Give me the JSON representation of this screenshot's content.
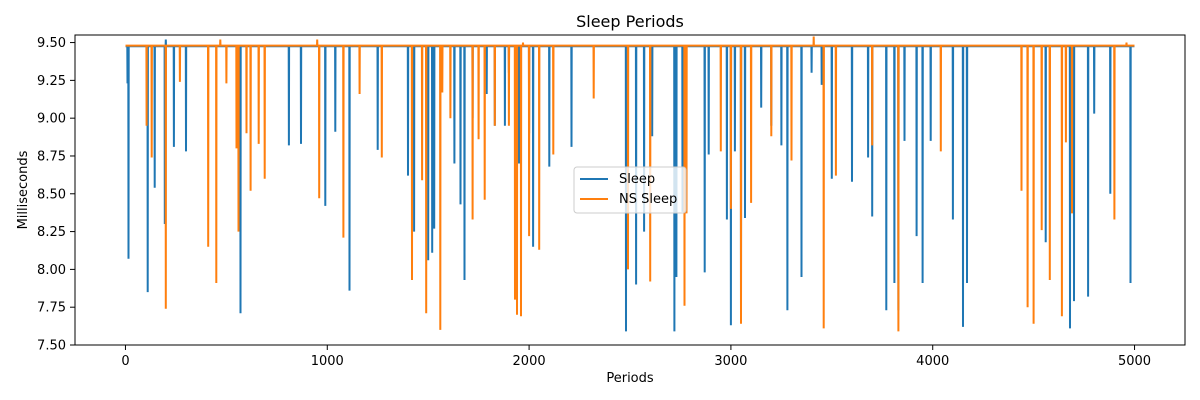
{
  "chart_data": {
    "type": "line",
    "title": "Sleep Periods",
    "xlabel": "Periods",
    "ylabel": "Milliseconds",
    "xlim": [
      -250,
      5250
    ],
    "ylim": [
      7.5,
      9.55
    ],
    "xticks": [
      0,
      1000,
      2000,
      3000,
      4000,
      5000
    ],
    "xtick_labels": [
      "0",
      "1000",
      "2000",
      "3000",
      "4000",
      "5000"
    ],
    "yticks": [
      7.5,
      7.75,
      8.0,
      8.25,
      8.5,
      8.75,
      9.0,
      9.25,
      9.5
    ],
    "ytick_labels": [
      "7.50",
      "7.75",
      "8.00",
      "8.25",
      "8.50",
      "8.75",
      "9.00",
      "9.25",
      "9.50"
    ],
    "grid": false,
    "legend_position": "center",
    "series": [
      {
        "name": "Sleep",
        "color": "#1f77b4",
        "baseline": 9.475,
        "x_range": [
          0,
          5000
        ],
        "dips": [
          [
            10,
            9.23
          ],
          [
            15,
            8.07
          ],
          [
            110,
            7.85
          ],
          [
            145,
            8.54
          ],
          [
            195,
            8.3
          ],
          [
            200,
            9.52
          ],
          [
            240,
            8.81
          ],
          [
            300,
            8.78
          ],
          [
            570,
            7.71
          ],
          [
            810,
            8.82
          ],
          [
            870,
            8.83
          ],
          [
            990,
            8.42
          ],
          [
            1040,
            8.91
          ],
          [
            1110,
            7.86
          ],
          [
            1250,
            8.79
          ],
          [
            1400,
            8.62
          ],
          [
            1430,
            8.25
          ],
          [
            1500,
            8.06
          ],
          [
            1520,
            8.11
          ],
          [
            1530,
            8.27
          ],
          [
            1630,
            8.7
          ],
          [
            1660,
            8.43
          ],
          [
            1680,
            7.93
          ],
          [
            1720,
            9.0
          ],
          [
            1790,
            9.16
          ],
          [
            1830,
            8.95
          ],
          [
            1880,
            8.95
          ],
          [
            1900,
            9.3
          ],
          [
            1950,
            8.7
          ],
          [
            2000,
            8.9
          ],
          [
            2020,
            8.15
          ],
          [
            2100,
            8.68
          ],
          [
            2210,
            8.81
          ],
          [
            2480,
            7.59
          ],
          [
            2530,
            7.9
          ],
          [
            2570,
            8.25
          ],
          [
            2610,
            8.88
          ],
          [
            2720,
            7.59
          ],
          [
            2730,
            7.95
          ],
          [
            2760,
            8.38
          ],
          [
            2870,
            7.98
          ],
          [
            2890,
            8.76
          ],
          [
            2980,
            8.33
          ],
          [
            3000,
            7.63
          ],
          [
            3020,
            8.78
          ],
          [
            3050,
            7.73
          ],
          [
            3070,
            8.34
          ],
          [
            3150,
            9.07
          ],
          [
            3200,
            8.95
          ],
          [
            3250,
            8.82
          ],
          [
            3280,
            7.73
          ],
          [
            3350,
            7.95
          ],
          [
            3400,
            9.3
          ],
          [
            3450,
            9.22
          ],
          [
            3500,
            8.6
          ],
          [
            3600,
            8.58
          ],
          [
            3680,
            8.74
          ],
          [
            3700,
            8.35
          ],
          [
            3770,
            7.73
          ],
          [
            3810,
            7.91
          ],
          [
            3830,
            7.73
          ],
          [
            3860,
            8.85
          ],
          [
            3920,
            8.22
          ],
          [
            3950,
            7.91
          ],
          [
            3990,
            8.85
          ],
          [
            4100,
            8.33
          ],
          [
            4150,
            7.62
          ],
          [
            4170,
            7.91
          ],
          [
            4560,
            8.18
          ],
          [
            4680,
            7.61
          ],
          [
            4700,
            7.79
          ],
          [
            4770,
            7.82
          ],
          [
            4800,
            9.03
          ],
          [
            4880,
            8.5
          ],
          [
            4980,
            7.91
          ]
        ]
      },
      {
        "name": "NS Sleep",
        "color": "#ff7f0e",
        "baseline": 9.48,
        "x_range": [
          0,
          5000
        ],
        "dips": [
          [
            105,
            8.95
          ],
          [
            130,
            8.74
          ],
          [
            200,
            7.74
          ],
          [
            270,
            9.24
          ],
          [
            410,
            8.15
          ],
          [
            450,
            7.91
          ],
          [
            470,
            9.52
          ],
          [
            500,
            9.23
          ],
          [
            550,
            8.8
          ],
          [
            560,
            8.25
          ],
          [
            600,
            8.9
          ],
          [
            620,
            8.52
          ],
          [
            660,
            8.83
          ],
          [
            690,
            8.6
          ],
          [
            950,
            9.52
          ],
          [
            960,
            8.47
          ],
          [
            1080,
            8.21
          ],
          [
            1160,
            9.16
          ],
          [
            1270,
            8.74
          ],
          [
            1420,
            7.93
          ],
          [
            1470,
            8.59
          ],
          [
            1490,
            7.71
          ],
          [
            1560,
            7.6
          ],
          [
            1570,
            9.17
          ],
          [
            1610,
            9.0
          ],
          [
            1720,
            8.33
          ],
          [
            1750,
            8.86
          ],
          [
            1780,
            8.46
          ],
          [
            1830,
            8.95
          ],
          [
            1900,
            8.95
          ],
          [
            1930,
            7.8
          ],
          [
            1940,
            7.7
          ],
          [
            1960,
            7.69
          ],
          [
            1970,
            9.5
          ],
          [
            2000,
            8.22
          ],
          [
            2050,
            8.13
          ],
          [
            2120,
            8.76
          ],
          [
            2320,
            9.13
          ],
          [
            2490,
            8.0
          ],
          [
            2600,
            7.92
          ],
          [
            2770,
            7.76
          ],
          [
            2780,
            8.37
          ],
          [
            2950,
            8.78
          ],
          [
            3000,
            8.4
          ],
          [
            3050,
            7.64
          ],
          [
            3100,
            8.44
          ],
          [
            3200,
            8.88
          ],
          [
            3300,
            8.72
          ],
          [
            3410,
            9.54
          ],
          [
            3460,
            7.61
          ],
          [
            3520,
            8.62
          ],
          [
            3700,
            8.82
          ],
          [
            3830,
            7.59
          ],
          [
            4040,
            8.78
          ],
          [
            4440,
            8.52
          ],
          [
            4470,
            7.75
          ],
          [
            4500,
            7.64
          ],
          [
            4540,
            8.26
          ],
          [
            4580,
            7.93
          ],
          [
            4640,
            7.69
          ],
          [
            4660,
            8.84
          ],
          [
            4690,
            8.37
          ],
          [
            4900,
            8.33
          ],
          [
            4960,
            9.5
          ]
        ]
      }
    ]
  }
}
